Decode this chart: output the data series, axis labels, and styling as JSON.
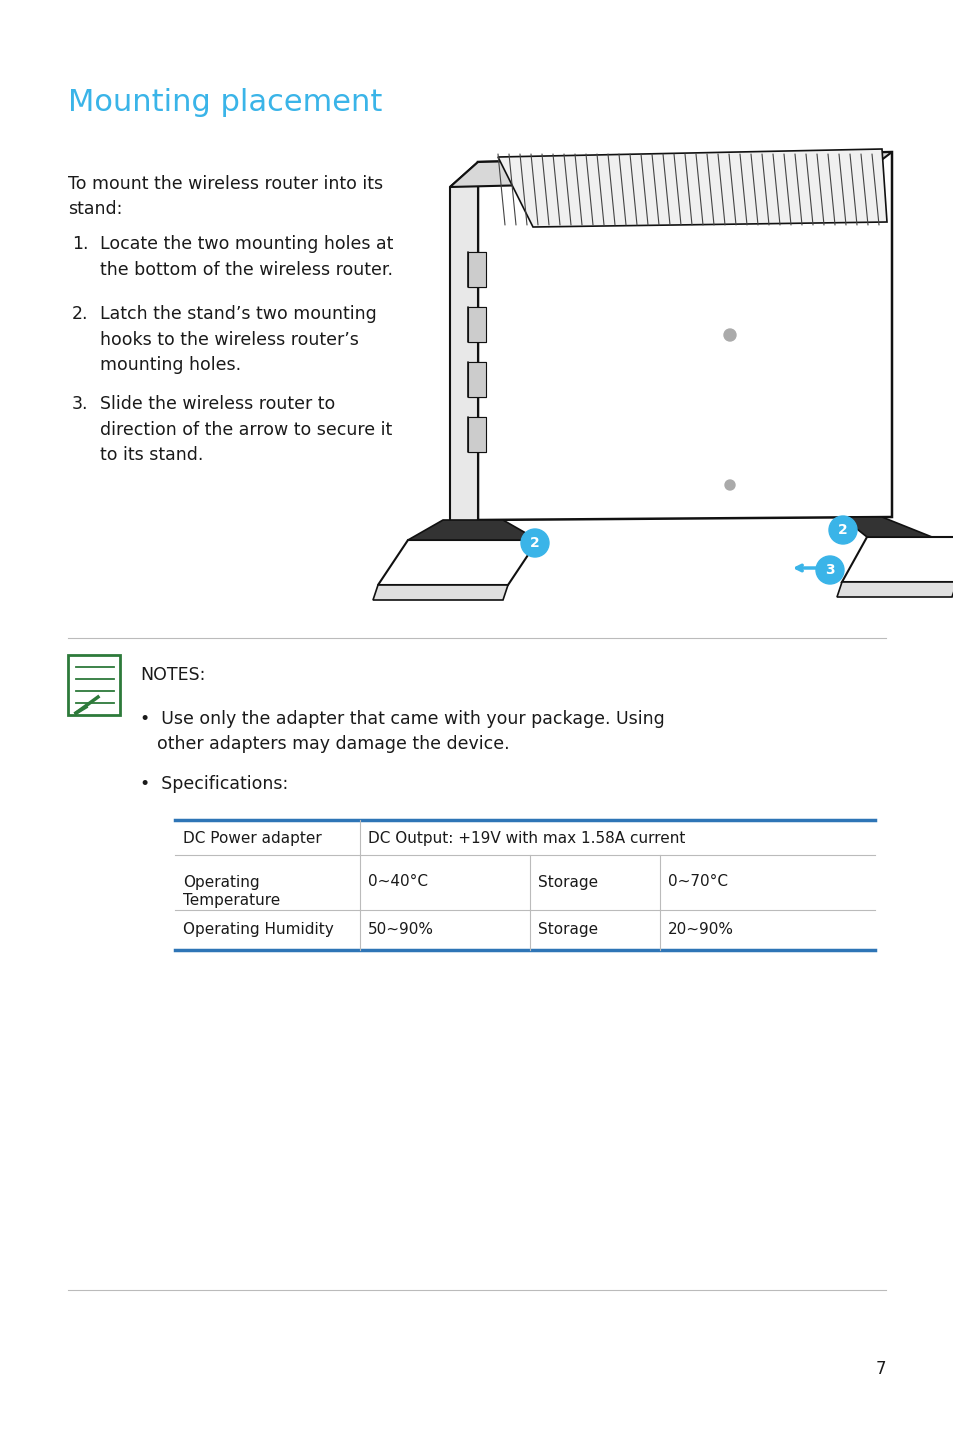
{
  "title": "Mounting placement",
  "title_color": "#3ab4e8",
  "bg_color": "#ffffff",
  "text_color": "#1a1a1a",
  "body_font_size": 12.5,
  "intro_text": "To mount the wireless router into its\nstand:",
  "steps": [
    "Locate the two mounting holes at\nthe bottom of the wireless router.",
    "Latch the stand’s two mounting\nhooks to the wireless router’s\nmounting holes.",
    "Slide the wireless router to\ndirection of the arrow to secure it\nto its stand."
  ],
  "notes_header": "NOTES:",
  "bullet1_line1": "Use only the adapter that came with your package. Using",
  "bullet1_line2": "other adapters may damage the device.",
  "bullet2": "Specifications:",
  "table_header_color": "#2e75b6",
  "table_line_color": "#2e75b6",
  "table_data": [
    [
      "DC Power adapter",
      "DC Output: +19V with max 1.58A current",
      "",
      ""
    ],
    [
      "Operating\nTemperature",
      "0~40°C",
      "Storage",
      "0~70°C"
    ],
    [
      "Operating Humidity",
      "50~90%",
      "Storage",
      "20~90%"
    ]
  ],
  "page_number": "7",
  "footer_line_color": "#bbbbbb",
  "accent_blue": "#3ab4e8",
  "icon_green": "#2d7a3a"
}
